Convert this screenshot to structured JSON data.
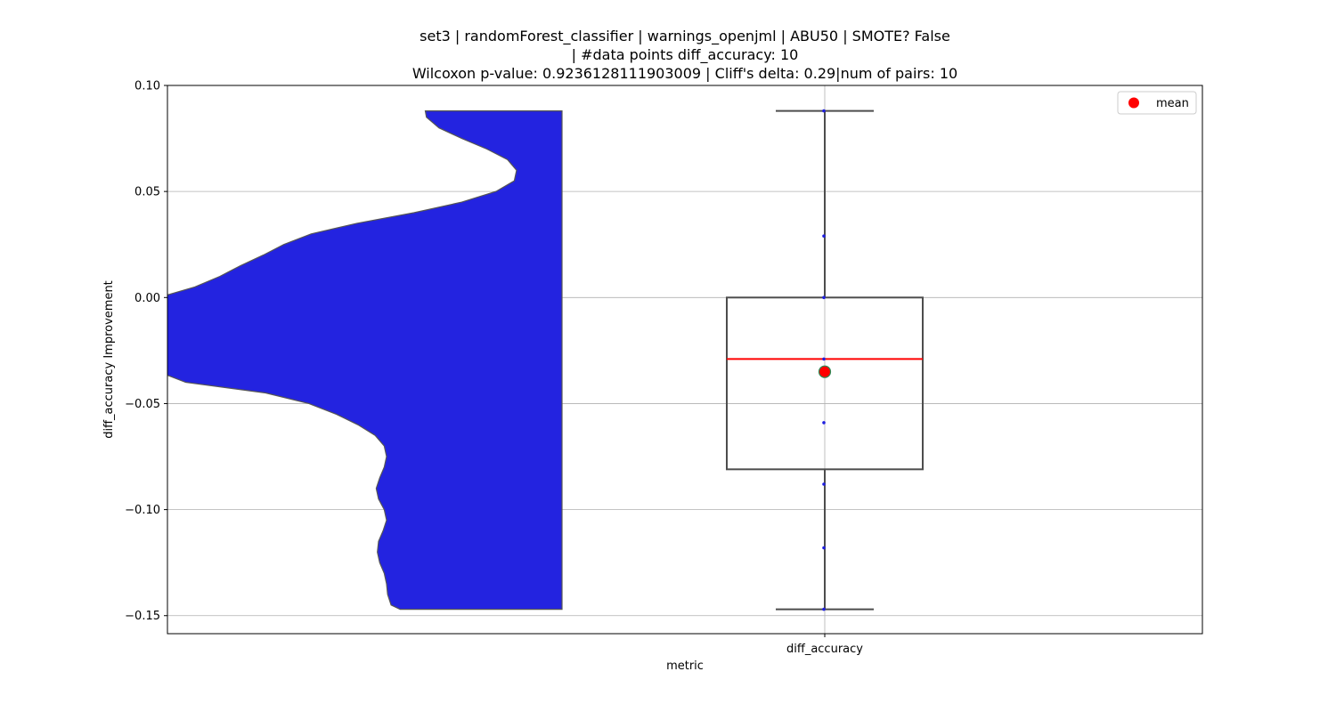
{
  "chart_data": {
    "type": "violin-box",
    "title_lines": [
      "set3 | randomForest_classifier | warnings_openjml | ABU50 | SMOTE? False",
      "| #data points diff_accuracy: 10",
      "Wilcoxon p-value: 0.9236128111903009 | Cliff's delta: 0.29|num of pairs: 10"
    ],
    "xlabel": "metric",
    "ylabel": "diff_accuracy Improvement",
    "categories": [
      "diff_accuracy"
    ],
    "ylim": [
      -0.1585,
      0.1
    ],
    "yticks": [
      0.1,
      0.05,
      0.0,
      -0.05,
      -0.1,
      -0.15
    ],
    "ytick_labels": [
      "0.10",
      "0.05",
      "0.00",
      "−0.05",
      "−0.10",
      "−0.15"
    ],
    "grid": true,
    "violin": {
      "color": "#2323e0",
      "edge_color": "#555555",
      "min": -0.147,
      "max": 0.088,
      "density_profile": [
        [
          0.088,
          0.13
        ],
        [
          0.085,
          0.135
        ],
        [
          0.08,
          0.19
        ],
        [
          0.075,
          0.29
        ],
        [
          0.07,
          0.4
        ],
        [
          0.065,
          0.49
        ],
        [
          0.06,
          0.53
        ],
        [
          0.055,
          0.52
        ],
        [
          0.05,
          0.44
        ],
        [
          0.045,
          0.29
        ],
        [
          0.04,
          0.08
        ],
        [
          0.035,
          -0.17
        ],
        [
          0.03,
          -0.37
        ],
        [
          0.025,
          -0.49
        ],
        [
          0.02,
          -0.58
        ],
        [
          0.015,
          -0.68
        ],
        [
          0.01,
          -0.77
        ],
        [
          0.005,
          -0.88
        ],
        [
          0.0,
          -1.0
        ],
        [
          -0.01,
          -1.0
        ],
        [
          -0.02,
          -1.0
        ],
        [
          -0.03,
          -1.0
        ],
        [
          -0.035,
          -1.0
        ],
        [
          -0.04,
          -0.92
        ],
        [
          -0.045,
          -0.57
        ],
        [
          -0.05,
          -0.38
        ],
        [
          -0.055,
          -0.26
        ],
        [
          -0.06,
          -0.165
        ],
        [
          -0.065,
          -0.09
        ],
        [
          -0.07,
          -0.05
        ],
        [
          -0.075,
          -0.04
        ],
        [
          -0.08,
          -0.05
        ],
        [
          -0.085,
          -0.07
        ],
        [
          -0.09,
          -0.085
        ],
        [
          -0.095,
          -0.075
        ],
        [
          -0.1,
          -0.05
        ],
        [
          -0.105,
          -0.04
        ],
        [
          -0.11,
          -0.055
        ],
        [
          -0.115,
          -0.075
        ],
        [
          -0.12,
          -0.08
        ],
        [
          -0.125,
          -0.07
        ],
        [
          -0.13,
          -0.05
        ],
        [
          -0.135,
          -0.04
        ],
        [
          -0.14,
          -0.035
        ],
        [
          -0.145,
          -0.02
        ],
        [
          -0.147,
          0.02
        ]
      ]
    },
    "box": {
      "q1": -0.081,
      "median": -0.029,
      "q3": 0.0,
      "whisker_low": -0.147,
      "whisker_high": 0.088,
      "mean": -0.035,
      "median_color": "#ff0000",
      "mean_color": "#ff0000",
      "mean_edge_color": "#2e8b57"
    },
    "points": [
      0.088,
      0.029,
      0.0,
      -0.029,
      -0.059,
      -0.088,
      -0.118,
      -0.147
    ],
    "legend": {
      "placement": "top-right",
      "entries": [
        "mean"
      ]
    }
  }
}
